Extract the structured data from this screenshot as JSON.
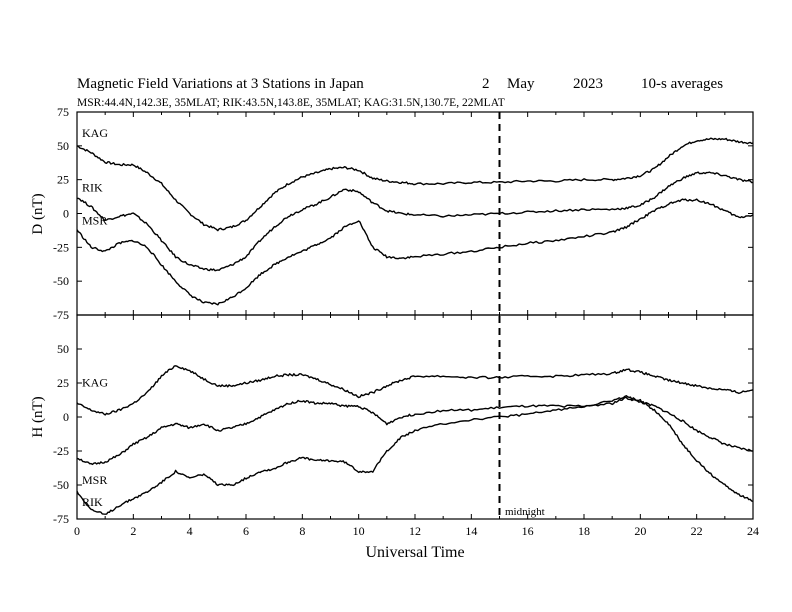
{
  "header": {
    "title": "Magnetic Field Variations at 3 Stations in Japan",
    "day": "2",
    "month": "May",
    "year": "2023",
    "averaging": "10-s averages",
    "stations_line": "MSR:44.4N,142.3E, 35MLAT;   RIK:43.5N,143.8E, 35MLAT;   KAG:31.5N,130.7E, 22MLAT"
  },
  "colors": {
    "line": "#000000",
    "background": "#ffffff"
  },
  "chart_data": [
    {
      "type": "line",
      "panel": "D",
      "ylabel": "D (nT)",
      "xlabel": "",
      "ylim": [
        -75,
        75
      ],
      "yticks": [
        "75",
        "50",
        "25",
        "0",
        "-25",
        "-50",
        "-75"
      ],
      "xlim": [
        0,
        24
      ],
      "xticks": [
        "0",
        "2",
        "4",
        "6",
        "8",
        "10",
        "12",
        "14",
        "16",
        "18",
        "20",
        "22",
        "24"
      ],
      "grid": false,
      "midline_hour": 15,
      "series": [
        {
          "name": "KAG",
          "x": [
            0,
            0.5,
            1,
            1.5,
            2,
            2.5,
            3,
            3.5,
            4,
            4.5,
            5,
            5.5,
            6,
            6.5,
            7,
            7.5,
            8,
            8.5,
            9,
            9.5,
            10,
            10.5,
            11,
            11.5,
            12,
            13,
            14,
            15,
            16,
            17,
            18,
            19,
            19.5,
            20,
            20.5,
            21,
            21.5,
            22,
            22.5,
            23,
            23.5,
            24
          ],
          "values": [
            50,
            45,
            38,
            36,
            36,
            30,
            22,
            10,
            0,
            -8,
            -12,
            -10,
            -5,
            5,
            15,
            22,
            27,
            30,
            33,
            34,
            32,
            26,
            24,
            23,
            22,
            22,
            23,
            23,
            24,
            24,
            25,
            25,
            26,
            28,
            33,
            42,
            50,
            54,
            55,
            55,
            53,
            52
          ]
        },
        {
          "name": "RIK",
          "x": [
            0,
            0.5,
            1,
            1.5,
            2,
            2.5,
            3,
            3.5,
            4,
            4.5,
            5,
            5.5,
            6,
            6.5,
            7,
            7.5,
            8,
            8.5,
            9,
            9.5,
            10,
            10.5,
            11,
            11.5,
            12,
            13,
            14,
            15,
            16,
            17,
            18,
            19,
            19.5,
            20,
            20.5,
            21,
            21.5,
            22,
            22.5,
            23,
            23.5,
            24
          ],
          "values": [
            12,
            5,
            -5,
            -2,
            0,
            -8,
            -20,
            -32,
            -38,
            -41,
            -42,
            -38,
            -32,
            -20,
            -10,
            -2,
            3,
            7,
            12,
            18,
            16,
            8,
            2,
            0,
            -1,
            -2,
            -1,
            0,
            1,
            2,
            3,
            3,
            4,
            6,
            12,
            20,
            26,
            30,
            30,
            28,
            25,
            23
          ]
        },
        {
          "name": "MSR",
          "x": [
            0,
            0.5,
            1,
            1.5,
            2,
            2.5,
            3,
            3.5,
            4,
            4.5,
            5,
            5.5,
            6,
            6.5,
            7,
            7.5,
            8,
            8.5,
            9,
            9.5,
            10,
            10.5,
            11,
            11.5,
            12,
            13,
            14,
            15,
            16,
            17,
            18,
            19,
            19.5,
            20,
            20.5,
            21,
            21.5,
            22,
            22.5,
            23,
            23.5,
            24
          ],
          "values": [
            -12,
            -25,
            -28,
            -22,
            -20,
            -25,
            -38,
            -50,
            -60,
            -66,
            -67,
            -62,
            -55,
            -45,
            -38,
            -32,
            -28,
            -23,
            -18,
            -10,
            -5,
            -25,
            -32,
            -33,
            -32,
            -30,
            -28,
            -25,
            -22,
            -20,
            -17,
            -14,
            -10,
            -4,
            2,
            7,
            10,
            10,
            7,
            2,
            -3,
            -1
          ]
        }
      ],
      "annotations": []
    },
    {
      "type": "line",
      "panel": "H",
      "ylabel": "H (nT)",
      "xlabel": "Universal Time",
      "ylim": [
        -75,
        75
      ],
      "yticks": [
        "75",
        "50",
        "25",
        "0",
        "-25",
        "-50",
        "-75"
      ],
      "xlim": [
        0,
        24
      ],
      "xticks": [
        "0",
        "2",
        "4",
        "6",
        "8",
        "10",
        "12",
        "14",
        "16",
        "18",
        "20",
        "22",
        "24"
      ],
      "grid": false,
      "midline_hour": 15,
      "series": [
        {
          "name": "KAG",
          "x": [
            0,
            0.5,
            1,
            1.5,
            2,
            2.5,
            3,
            3.5,
            4,
            4.5,
            5,
            5.5,
            6,
            6.5,
            7,
            7.5,
            8,
            8.5,
            9,
            9.5,
            10,
            10.5,
            11,
            11.5,
            12,
            13,
            14,
            15,
            16,
            17,
            18,
            19,
            19.5,
            20,
            20.5,
            21,
            21.5,
            22,
            22.5,
            23,
            23.5,
            24
          ],
          "values": [
            10,
            5,
            2,
            5,
            10,
            18,
            30,
            38,
            34,
            28,
            23,
            23,
            25,
            27,
            30,
            31,
            31,
            28,
            24,
            20,
            15,
            18,
            23,
            27,
            30,
            30,
            29,
            29,
            30,
            30,
            31,
            32,
            35,
            33,
            30,
            27,
            25,
            23,
            21,
            20,
            18,
            20
          ]
        },
        {
          "name": "RIK",
          "x": [
            0,
            0.5,
            1,
            1.5,
            2,
            2.5,
            3,
            3.5,
            4,
            4.5,
            5,
            5.5,
            6,
            6.5,
            7,
            7.5,
            8,
            8.5,
            9,
            9.5,
            10,
            10.5,
            11,
            11.5,
            12,
            13,
            14,
            15,
            16,
            17,
            18,
            19,
            19.5,
            20,
            20.5,
            21,
            21.5,
            22,
            22.5,
            23,
            23.5,
            24
          ],
          "values": [
            -30,
            -35,
            -33,
            -28,
            -20,
            -15,
            -8,
            -5,
            -8,
            -5,
            -10,
            -8,
            -5,
            0,
            5,
            10,
            12,
            10,
            10,
            8,
            8,
            3,
            -5,
            0,
            2,
            5,
            5,
            7,
            8,
            8,
            8,
            10,
            14,
            11,
            8,
            3,
            -3,
            -10,
            -15,
            -20,
            -23,
            -25
          ]
        },
        {
          "name": "MSR",
          "x": [
            0,
            0.5,
            1,
            1.5,
            2,
            2.5,
            3,
            3.5,
            4,
            4.5,
            5,
            5.5,
            6,
            6.5,
            7,
            7.5,
            8,
            8.5,
            9,
            9.5,
            10,
            10.5,
            11,
            11.5,
            12,
            13,
            14,
            15,
            16,
            17,
            18,
            19,
            19.5,
            20,
            20.5,
            21,
            21.5,
            22,
            22.5,
            23,
            23.5,
            24
          ],
          "values": [
            -55,
            -68,
            -72,
            -65,
            -60,
            -55,
            -48,
            -40,
            -45,
            -42,
            -50,
            -50,
            -45,
            -40,
            -38,
            -33,
            -30,
            -32,
            -32,
            -33,
            -40,
            -40,
            -25,
            -15,
            -10,
            -5,
            -2,
            0,
            2,
            5,
            8,
            12,
            15,
            12,
            5,
            -5,
            -20,
            -32,
            -42,
            -50,
            -57,
            -62
          ]
        }
      ],
      "annotations": [
        "midnight"
      ]
    }
  ]
}
